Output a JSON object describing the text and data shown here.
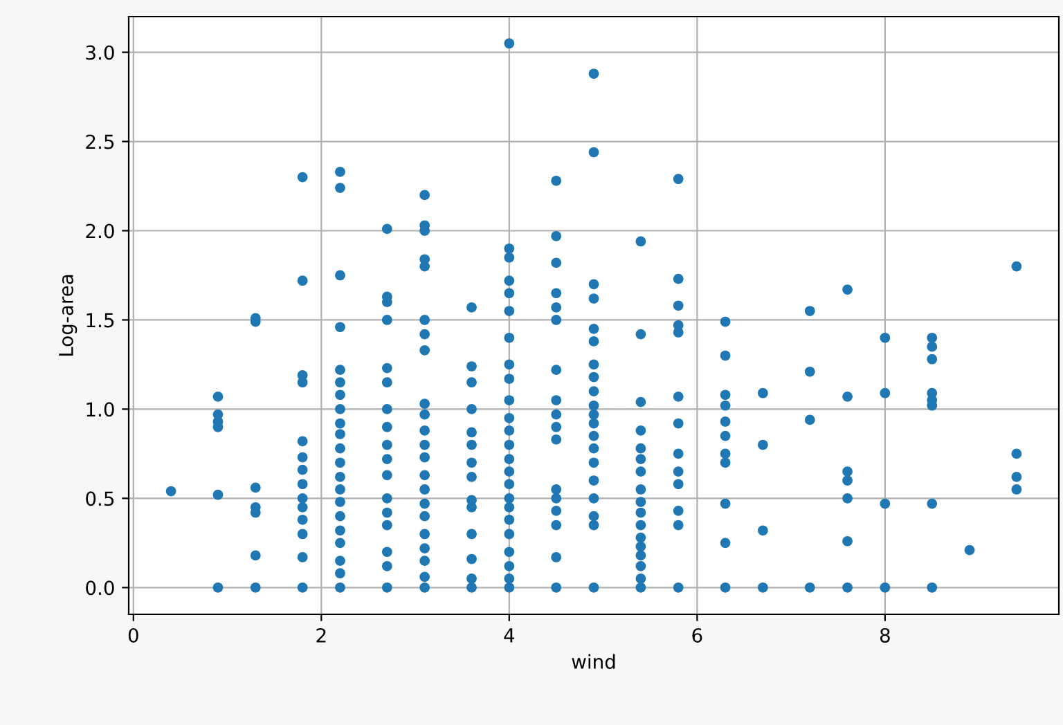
{
  "chart_data": {
    "type": "scatter",
    "xlabel": "wind",
    "ylabel": "Log-area",
    "xlim": [
      -0.05,
      9.85
    ],
    "xticks": [
      0,
      2,
      4,
      6,
      8
    ],
    "ylim": [
      -0.15,
      3.2
    ],
    "yticks": [
      {
        "value": 0,
        "label": "0.0"
      },
      {
        "value": 0.5,
        "label": "0.5"
      },
      {
        "value": 1,
        "label": "1.0"
      },
      {
        "value": 1.5,
        "label": "1.5"
      },
      {
        "value": 2,
        "label": "2.0"
      },
      {
        "value": 2.5,
        "label": "2.5"
      },
      {
        "value": 3,
        "label": "3.0"
      }
    ],
    "grid": true,
    "marker": "circle",
    "series": [
      {
        "color": "#1f77b4",
        "x": [
          0.4,
          0.9,
          0.9,
          0.9,
          0.9,
          0.9,
          0.9,
          1.3,
          1.3,
          1.3,
          1.3,
          1.3,
          1.3,
          1.3,
          1.8,
          1.8,
          1.8,
          1.8,
          1.8,
          1.8,
          1.8,
          1.8,
          1.8,
          1.8,
          1.8,
          1.8,
          1.8,
          1.8,
          2.2,
          2.2,
          2.2,
          2.2,
          2.2,
          2.2,
          2.2,
          2.2,
          2.2,
          2.2,
          2.2,
          2.2,
          2.2,
          2.2,
          2.2,
          2.2,
          2.2,
          2.2,
          2.2,
          2.2,
          2.2,
          2.7,
          2.7,
          2.7,
          2.7,
          2.7,
          2.7,
          2.7,
          2.7,
          2.7,
          2.7,
          2.7,
          2.7,
          2.7,
          2.7,
          2.7,
          2.7,
          2.7,
          3.1,
          3.1,
          3.1,
          3.1,
          3.1,
          3.1,
          3.1,
          3.1,
          3.1,
          3.1,
          3.1,
          3.1,
          3.1,
          3.1,
          3.1,
          3.1,
          3.1,
          3.1,
          3.1,
          3.1,
          3.1,
          3.1,
          3.6,
          3.6,
          3.6,
          3.6,
          3.6,
          3.6,
          3.6,
          3.6,
          3.6,
          3.6,
          3.6,
          3.6,
          3.6,
          3.6,
          4.0,
          4.0,
          4.0,
          4.0,
          4.0,
          4.0,
          4.0,
          4.0,
          4.0,
          4.0,
          4.0,
          4.0,
          4.0,
          4.0,
          4.0,
          4.0,
          4.0,
          4.0,
          4.0,
          4.0,
          4.0,
          4.0,
          4.0,
          4.0,
          4.5,
          4.5,
          4.5,
          4.5,
          4.5,
          4.5,
          4.5,
          4.5,
          4.5,
          4.5,
          4.5,
          4.5,
          4.5,
          4.5,
          4.5,
          4.5,
          4.5,
          4.9,
          4.9,
          4.9,
          4.9,
          4.9,
          4.9,
          4.9,
          4.9,
          4.9,
          4.9,
          4.9,
          4.9,
          4.9,
          4.9,
          4.9,
          4.9,
          4.9,
          4.9,
          4.9,
          4.9,
          5.4,
          5.4,
          5.4,
          5.4,
          5.4,
          5.4,
          5.4,
          5.4,
          5.4,
          5.4,
          5.4,
          5.4,
          5.4,
          5.4,
          5.4,
          5.4,
          5.4,
          5.8,
          5.8,
          5.8,
          5.8,
          5.8,
          5.8,
          5.8,
          5.8,
          5.8,
          5.8,
          5.8,
          5.8,
          5.8,
          6.3,
          6.3,
          6.3,
          6.3,
          6.3,
          6.3,
          6.3,
          6.3,
          6.3,
          6.3,
          6.3,
          6.7,
          6.7,
          6.7,
          6.7,
          7.2,
          7.2,
          7.2,
          7.2,
          7.6,
          7.6,
          7.6,
          7.6,
          7.6,
          7.6,
          7.6,
          8.0,
          8.0,
          8.0,
          8.0,
          8.5,
          8.5,
          8.5,
          8.5,
          8.5,
          8.5,
          8.5,
          8.5,
          8.9,
          9.4,
          9.4,
          9.4,
          9.4
        ],
        "values": [
          0.54,
          0,
          0.52,
          0.9,
          0.93,
          0.97,
          1.07,
          0,
          0.18,
          0.42,
          0.45,
          0.56,
          1.49,
          1.51,
          0,
          0.17,
          0.3,
          0.38,
          0.45,
          0.5,
          0.58,
          0.66,
          0.73,
          0.82,
          1.15,
          1.19,
          1.72,
          2.3,
          0,
          0.08,
          0.15,
          0.25,
          0.32,
          0.4,
          0.48,
          0.55,
          0.62,
          0.7,
          0.78,
          0.86,
          0.92,
          1.0,
          1.08,
          1.15,
          1.22,
          1.46,
          1.75,
          2.24,
          2.33,
          0,
          0.12,
          0.2,
          0.35,
          0.42,
          0.5,
          0.63,
          0.72,
          0.8,
          0.9,
          1.0,
          1.15,
          1.23,
          1.5,
          1.6,
          1.63,
          2.01,
          0,
          0.06,
          0.15,
          0.22,
          0.3,
          0.4,
          0.47,
          0.55,
          0.63,
          0.73,
          0.8,
          0.88,
          0.97,
          1.03,
          1.33,
          1.42,
          1.5,
          1.8,
          1.84,
          2.0,
          2.03,
          2.2,
          0,
          0.05,
          0.16,
          0.3,
          0.45,
          0.49,
          0.62,
          0.7,
          0.8,
          0.87,
          1.0,
          1.15,
          1.24,
          1.57,
          0,
          0.05,
          0.12,
          0.2,
          0.3,
          0.38,
          0.45,
          0.5,
          0.58,
          0.65,
          0.72,
          0.8,
          0.88,
          0.95,
          1.05,
          1.17,
          1.25,
          1.4,
          1.55,
          1.65,
          1.72,
          1.85,
          1.9,
          3.05,
          0,
          0.17,
          0.35,
          0.43,
          0.5,
          0.55,
          0.83,
          0.9,
          0.97,
          1.05,
          1.22,
          1.5,
          1.57,
          1.65,
          1.82,
          1.97,
          2.28,
          0,
          0.35,
          0.4,
          0.5,
          0.6,
          0.7,
          0.78,
          0.85,
          0.92,
          0.97,
          1.02,
          1.1,
          1.18,
          1.25,
          1.38,
          1.45,
          1.62,
          1.7,
          2.44,
          2.88,
          0,
          0.05,
          0.12,
          0.18,
          0.23,
          0.28,
          0.35,
          0.42,
          0.48,
          0.55,
          0.65,
          0.72,
          0.78,
          0.88,
          1.04,
          1.42,
          1.94,
          0,
          0.35,
          0.43,
          0.58,
          0.65,
          0.75,
          0.92,
          1.07,
          1.43,
          1.47,
          1.58,
          1.73,
          2.29,
          0,
          0.25,
          0.47,
          0.7,
          0.75,
          0.85,
          0.93,
          1.02,
          1.08,
          1.3,
          1.49,
          0,
          0.32,
          0.8,
          1.09,
          0,
          0.94,
          1.21,
          1.55,
          0,
          0.26,
          0.5,
          0.6,
          0.65,
          1.07,
          1.67,
          0,
          0.47,
          1.09,
          1.4,
          0,
          0.47,
          1.02,
          1.05,
          1.09,
          1.28,
          1.35,
          1.4,
          0.21,
          0.55,
          0.62,
          0.75,
          1.8
        ]
      }
    ]
  }
}
